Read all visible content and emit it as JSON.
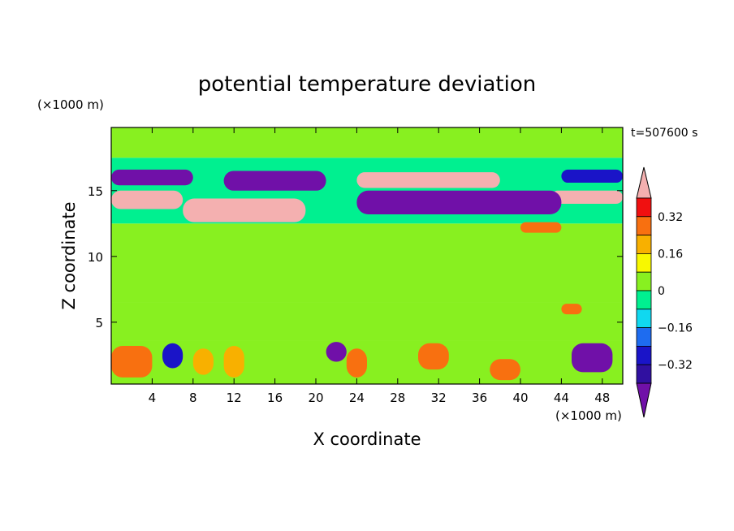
{
  "chart_data": {
    "type": "heatmap",
    "title": "potential temperature deviation",
    "xlabel": "X coordinate",
    "ylabel": "Z coordinate",
    "x_unit": "(×1000 m)",
    "y_unit": "(×1000 m)",
    "time_label": "t=507600 s",
    "xlim": [
      0,
      50
    ],
    "ylim": [
      0.3,
      19.8
    ],
    "x_ticks": [
      "4",
      "8",
      "12",
      "16",
      "20",
      "24",
      "28",
      "32",
      "36",
      "40",
      "44",
      "48"
    ],
    "y_ticks": [
      "5",
      "10",
      "15"
    ],
    "colorbar": {
      "levels": [
        -0.4,
        -0.32,
        -0.24,
        -0.16,
        -0.08,
        0,
        0.08,
        0.16,
        0.24,
        0.32,
        0.4
      ],
      "tick_labels": [
        "0.32",
        "0.16",
        "0",
        "−0.16",
        "−0.32"
      ],
      "colors": [
        "#7010a8",
        "#3010a0",
        "#1a14c8",
        "#1e6cf0",
        "#10d8f0",
        "#00f090",
        "#88f020",
        "#f8f800",
        "#f8b000",
        "#f87010",
        "#f01010",
        "#f4b0b0"
      ],
      "extend": "both"
    },
    "regions": [
      {
        "x": [
          0,
          50
        ],
        "z": [
          0.3,
          3.6
        ],
        "value": 0.02
      },
      {
        "x": [
          0,
          50
        ],
        "z": [
          3.6,
          6.5
        ],
        "value": 0.05
      },
      {
        "x": [
          0,
          50
        ],
        "z": [
          6.5,
          12.5
        ],
        "value": 0.03
      },
      {
        "x": [
          0,
          50
        ],
        "z": [
          12.5,
          17.5
        ],
        "value": -0.05
      },
      {
        "x": [
          0,
          50
        ],
        "z": [
          17.5,
          19.8
        ],
        "value": 0.04
      },
      {
        "x": [
          0,
          7
        ],
        "z": [
          13.6,
          15.0
        ],
        "value": 0.45
      },
      {
        "x": [
          7,
          19
        ],
        "z": [
          12.6,
          14.4
        ],
        "value": 0.45
      },
      {
        "x": [
          24,
          38
        ],
        "z": [
          15.2,
          16.4
        ],
        "value": 0.45
      },
      {
        "x": [
          43,
          50
        ],
        "z": [
          14.0,
          15.0
        ],
        "value": 0.45
      },
      {
        "x": [
          0,
          8
        ],
        "z": [
          15.4,
          16.6
        ],
        "value": -0.42
      },
      {
        "x": [
          11,
          21
        ],
        "z": [
          15.0,
          16.5
        ],
        "value": -0.42
      },
      {
        "x": [
          24,
          44
        ],
        "z": [
          13.2,
          15.0
        ],
        "value": -0.42
      },
      {
        "x": [
          44,
          50
        ],
        "z": [
          15.6,
          16.6
        ],
        "value": -0.3
      },
      {
        "x": [
          40,
          44
        ],
        "z": [
          11.8,
          12.6
        ],
        "value": 0.3
      },
      {
        "x": [
          44,
          46
        ],
        "z": [
          5.6,
          6.4
        ],
        "value": 0.3
      },
      {
        "x": [
          0,
          4
        ],
        "z": [
          0.8,
          3.2
        ],
        "value": 0.3
      },
      {
        "x": [
          21,
          23
        ],
        "z": [
          2.0,
          3.5
        ],
        "value": -0.42
      },
      {
        "x": [
          23,
          25
        ],
        "z": [
          0.8,
          3.0
        ],
        "value": 0.28
      },
      {
        "x": [
          37,
          40
        ],
        "z": [
          0.6,
          2.2
        ],
        "value": 0.28
      },
      {
        "x": [
          45,
          49
        ],
        "z": [
          1.2,
          3.4
        ],
        "value": -0.42
      },
      {
        "x": [
          8,
          10
        ],
        "z": [
          1.0,
          3.0
        ],
        "value": 0.22
      },
      {
        "x": [
          11,
          13
        ],
        "z": [
          0.8,
          3.2
        ],
        "value": 0.18
      },
      {
        "x": [
          5,
          7
        ],
        "z": [
          1.5,
          3.4
        ],
        "value": -0.3
      },
      {
        "x": [
          30,
          33
        ],
        "z": [
          1.4,
          3.4
        ],
        "value": 0.26
      }
    ]
  }
}
